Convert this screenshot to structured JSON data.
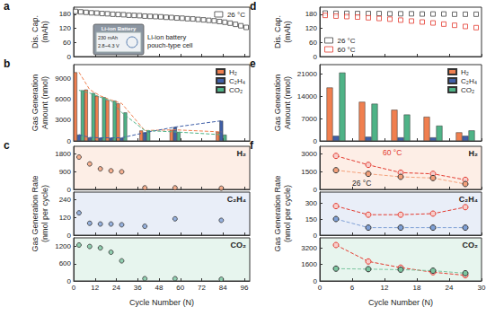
{
  "chart_data": [
    {
      "type": "scatter",
      "title": "a",
      "ylabel": "Dis. Cap.\n(mAh)",
      "x": [
        1,
        4,
        7,
        10,
        13,
        16,
        19,
        22,
        25,
        28,
        31,
        34,
        37,
        40,
        43,
        46,
        49,
        52,
        55,
        58,
        61,
        64,
        67,
        70,
        73,
        76,
        79,
        82,
        85,
        88,
        91,
        94,
        97
      ],
      "series": [
        {
          "name": "26 °C",
          "color": "#444444",
          "marker": "square-open",
          "values": [
            192,
            190,
            188,
            186,
            185,
            183,
            182,
            180,
            179,
            178,
            176,
            175,
            174,
            172,
            171,
            170,
            169,
            167,
            166,
            164,
            163,
            161,
            160,
            158,
            156,
            154,
            152,
            149,
            146,
            142,
            137,
            131,
            124
          ]
        }
      ],
      "xlim": [
        0,
        99
      ],
      "xticks": [
        0,
        12,
        24,
        36,
        48,
        60,
        72,
        84,
        96
      ],
      "ylim": [
        0,
        210
      ],
      "yticks": [
        0,
        60,
        120,
        180
      ],
      "grid": false,
      "legend": "upper right",
      "tick_labels": "y",
      "annotations": [
        {
          "text": "Li-ion battery\npouch-type cell"
        },
        {
          "text": "Li-ion Battery"
        },
        {
          "text": "230 mAh"
        },
        {
          "text": "2.8~4.3 V"
        }
      ]
    },
    {
      "type": "bar",
      "title": "b",
      "ylabel": "Gas Generation\nAmount (nmol)",
      "x": [
        3,
        9,
        15,
        21,
        27,
        40,
        57,
        83
      ],
      "series": [
        {
          "name": "H₂",
          "color": "#f07f4f",
          "line_style": "dashed",
          "values": [
            9900,
            7400,
            6500,
            5900,
            5400,
            1500,
            1600,
            1300
          ]
        },
        {
          "name": "C₂H₄",
          "color": "#3f5fa8",
          "line_style": "dashed",
          "values": [
            900,
            500,
            450,
            450,
            450,
            1200,
            2000,
            2900
          ]
        },
        {
          "name": "CO₂",
          "color": "#4fb387",
          "line_style": "dashed",
          "values": [
            7300,
            6900,
            6300,
            5800,
            4100,
            1500,
            1300,
            900
          ]
        }
      ],
      "xlim": [
        0,
        99
      ],
      "xticks": [
        0,
        12,
        24,
        36,
        48,
        60,
        72,
        84,
        96
      ],
      "ylim": [
        0,
        11000
      ],
      "yticks": [
        0,
        3000,
        6000,
        9000
      ],
      "grid": false,
      "legend": "upper right",
      "tick_labels": "y"
    },
    {
      "type": "scatter",
      "title": "c",
      "x": [
        3,
        9,
        15,
        21,
        27,
        40,
        57,
        83
      ],
      "series": [
        {
          "name": "H₂",
          "color": "#f4a07a",
          "marker": "circle",
          "values": [
            1650,
            1300,
            1050,
            950,
            900,
            80,
            80,
            60
          ]
        }
      ],
      "xlim": [
        0,
        99
      ],
      "xticks": [
        0,
        12,
        24,
        36,
        48,
        60,
        72,
        84,
        96
      ],
      "ylim": [
        0,
        2200
      ],
      "yticks": [
        0,
        900,
        1800
      ],
      "grid": false,
      "tick_labels": "y",
      "annotations": [
        {
          "text": "H₂"
        }
      ]
    },
    {
      "type": "scatter",
      "ylabel": "Gas Generation Rate\n(nmol per cycle)",
      "x": [
        3,
        9,
        15,
        21,
        27,
        40,
        57,
        83
      ],
      "series": [
        {
          "name": "C₂H₄",
          "color": "#7fa0d6",
          "marker": "circle",
          "values": [
            150,
            80,
            75,
            75,
            70,
            60,
            110,
            100
          ]
        }
      ],
      "xlim": [
        0,
        99
      ],
      "xticks": [
        0,
        12,
        24,
        36,
        48,
        60,
        72,
        84,
        96
      ],
      "ylim": [
        0,
        290
      ],
      "yticks": [
        0,
        120,
        240
      ],
      "grid": false,
      "tick_labels": "y",
      "annotations": [
        {
          "text": "C₂H₄"
        }
      ]
    },
    {
      "type": "scatter",
      "xlabel": "Cycle Number (N)",
      "x": [
        3,
        9,
        15,
        21,
        27,
        40,
        57,
        83
      ],
      "series": [
        {
          "name": "CO₂",
          "color": "#7cc6a0",
          "marker": "circle",
          "values": [
            1250,
            1200,
            1150,
            1000,
            700,
            80,
            80,
            60
          ]
        }
      ],
      "xlim": [
        0,
        99
      ],
      "xticks": [
        0,
        12,
        24,
        36,
        48,
        60,
        72,
        84,
        96
      ],
      "ylim": [
        0,
        1500
      ],
      "yticks": [
        0,
        600,
        1200
      ],
      "grid": false,
      "tick_labels": true,
      "annotations": [
        {
          "text": "CO₂"
        }
      ]
    },
    {
      "type": "scatter",
      "title": "d",
      "ylabel": "Dis. Cap.\n(mAh)",
      "x": [
        1,
        3,
        5,
        7,
        9,
        11,
        13,
        15,
        17,
        19,
        21,
        23,
        25,
        27,
        29
      ],
      "series": [
        {
          "name": "26 °C",
          "color": "#444444",
          "marker": "square-open",
          "values": [
            185,
            184,
            184,
            183,
            183,
            183,
            182,
            182,
            182,
            181,
            181,
            181,
            180,
            180,
            180
          ]
        },
        {
          "name": "60 °C",
          "color": "#e3392e",
          "marker": "square-open",
          "values": [
            175,
            172,
            170,
            168,
            165,
            162,
            159,
            155,
            151,
            147,
            143,
            138,
            133,
            128,
            123
          ]
        }
      ],
      "xlim": [
        0,
        30
      ],
      "xticks": [
        0,
        6,
        12,
        18,
        24,
        30
      ],
      "ylim": [
        0,
        210
      ],
      "yticks": [
        0,
        60,
        120,
        180
      ],
      "grid": false,
      "legend": "lower left",
      "tick_labels": "y"
    },
    {
      "type": "bar",
      "title": "e",
      "ylabel": "Gas Generation\nAmount (nmol)",
      "x": [
        3,
        9,
        15,
        21,
        27
      ],
      "series": [
        {
          "name": "H₂",
          "color": "#f07f4f",
          "values": [
            16800,
            12300,
            9800,
            7600,
            2700
          ]
        },
        {
          "name": "C₂H₄",
          "color": "#3f5fa8",
          "values": [
            1600,
            1300,
            1100,
            1100,
            1600
          ]
        },
        {
          "name": "CO₂",
          "color": "#4fb387",
          "values": [
            21500,
            11700,
            8300,
            4800,
            3300
          ]
        }
      ],
      "xlim": [
        0,
        30
      ],
      "xticks": [
        0,
        6,
        12,
        18,
        24,
        30
      ],
      "ylim": [
        0,
        24000
      ],
      "yticks": [
        0,
        7000,
        14000,
        21000
      ],
      "grid": false,
      "legend": "upper right",
      "tick_labels": "y"
    },
    {
      "type": "line",
      "title": "f",
      "x": [
        3,
        9,
        15,
        21,
        27
      ],
      "series": [
        {
          "name": "60 °C",
          "color": "#e3392e",
          "marker": "circle-open",
          "line_style": "dashed",
          "values": [
            2800,
            2050,
            1400,
            1300,
            800
          ]
        },
        {
          "name": "26 °C",
          "color": "#f4a07a",
          "marker": "circle",
          "line_style": "dashed",
          "values": [
            1600,
            1300,
            1050,
            950,
            450
          ]
        }
      ],
      "xlim": [
        0,
        30
      ],
      "xticks": [
        0,
        6,
        12,
        18,
        24,
        30
      ],
      "ylim": [
        0,
        3600
      ],
      "yticks": [
        0,
        1500,
        3000
      ],
      "grid": false,
      "tick_labels": "y",
      "annotations": [
        {
          "text": "H₂"
        },
        {
          "text": "60 °C",
          "color": "#e3392e"
        },
        {
          "text": "26 °C"
        }
      ]
    },
    {
      "type": "line",
      "ylabel": "Gas Generation Rate\n(nmol per cycle)",
      "x": [
        3,
        9,
        15,
        21,
        27
      ],
      "series": [
        {
          "name": "60 °C",
          "color": "#e3392e",
          "marker": "circle-open",
          "line_style": "dashed",
          "values": [
            270,
            190,
            190,
            200,
            260
          ]
        },
        {
          "name": "26 °C",
          "color": "#7fa0d6",
          "marker": "circle",
          "line_style": "dashed",
          "values": [
            150,
            70,
            70,
            70,
            70
          ]
        }
      ],
      "xlim": [
        0,
        30
      ],
      "xticks": [
        0,
        6,
        12,
        18,
        24,
        30
      ],
      "ylim": [
        0,
        400
      ],
      "yticks": [
        0,
        150,
        300
      ],
      "grid": false,
      "tick_labels": "y",
      "annotations": [
        {
          "text": "C₂H₄"
        }
      ]
    },
    {
      "type": "line",
      "xlabel": "Cycle Number (N)",
      "x": [
        3,
        9,
        15,
        21,
        27
      ],
      "series": [
        {
          "name": "60 °C",
          "color": "#e3392e",
          "marker": "circle-open",
          "line_style": "dashed",
          "values": [
            3500,
            1900,
            1300,
            850,
            550
          ]
        },
        {
          "name": "26 °C",
          "color": "#7cc6a0",
          "marker": "circle",
          "line_style": "dashed",
          "values": [
            1200,
            1150,
            1100,
            1000,
            750
          ]
        }
      ],
      "xlim": [
        0,
        30
      ],
      "xticks": [
        0,
        6,
        12,
        18,
        24,
        30
      ],
      "ylim": [
        0,
        4200
      ],
      "yticks": [
        0,
        1600,
        3200
      ],
      "grid": false,
      "tick_labels": true,
      "annotations": [
        {
          "text": "CO₂"
        }
      ]
    }
  ]
}
